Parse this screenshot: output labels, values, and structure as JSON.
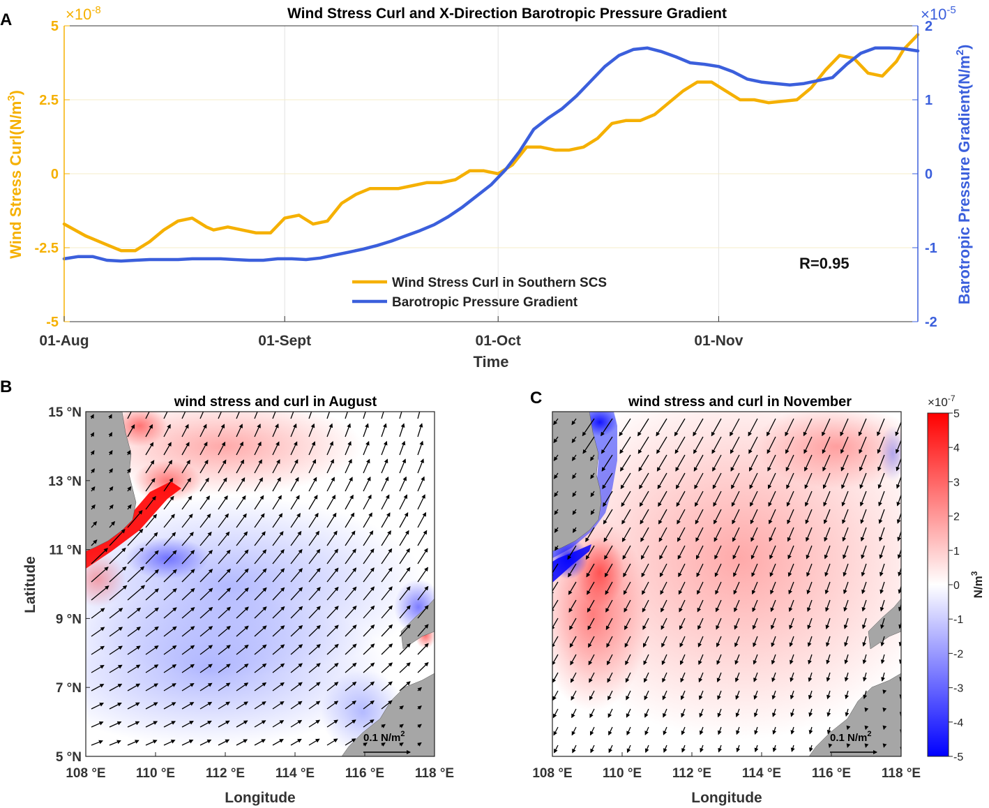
{
  "panelA": {
    "label": "A",
    "chart_data": {
      "type": "line",
      "title": "Wind Stress Curl and X-Direction Barotropic Pressure Gradient",
      "xlabel": "Time",
      "x_ticks": [
        "01-Aug",
        "01-Sept",
        "01-Oct",
        "01-Nov"
      ],
      "x_tick_days": [
        0,
        31,
        61,
        92
      ],
      "xlim": [
        0,
        120
      ],
      "left_axis": {
        "label": "Wind Stress Curl(N/m3)",
        "label_main": "Wind Stress Curl(N/m",
        "label_sup": "3",
        "label_end": ")",
        "multiplier": "×10",
        "exponent": "-8",
        "ylim": [
          -5,
          5
        ],
        "ticks": [
          -5,
          -2.5,
          0,
          2.5,
          5
        ],
        "tick_labels": [
          "-5",
          "-2.5",
          "0",
          "2.5",
          "5"
        ],
        "color": "#f5b000"
      },
      "right_axis": {
        "label": "Barotropic Pressure Gradient(N/m2)",
        "label_main": "Barotropic Pressure Gradient(N/m",
        "label_sup": "2",
        "label_end": ")",
        "multiplier": "×10",
        "exponent": "-5",
        "ylim": [
          -2,
          2
        ],
        "ticks": [
          -2,
          -1,
          0,
          1,
          2
        ],
        "tick_labels": [
          "-2",
          "-1",
          "0",
          "1",
          "2"
        ],
        "color": "#3b5fdc"
      },
      "annotation": "R=0.95",
      "series": [
        {
          "name": "Wind Stress Curl in Southern SCS",
          "axis": "left",
          "color": "#f5b000",
          "x": [
            0,
            3,
            6,
            8,
            10,
            12,
            14,
            16,
            18,
            20,
            21,
            23,
            25,
            27,
            29,
            31,
            33,
            35,
            37,
            39,
            41,
            43,
            45,
            47,
            49,
            51,
            53,
            55,
            57,
            59,
            61,
            63,
            65,
            67,
            69,
            71,
            73,
            75,
            77,
            79,
            81,
            83,
            85,
            87,
            89,
            91,
            93,
            95,
            97,
            99,
            101,
            103,
            105,
            107,
            109,
            111,
            113,
            115,
            117,
            118,
            120
          ],
          "values": [
            -1.7,
            -2.1,
            -2.4,
            -2.6,
            -2.6,
            -2.3,
            -1.9,
            -1.6,
            -1.5,
            -1.8,
            -1.9,
            -1.8,
            -1.9,
            -2.0,
            -2.0,
            -1.5,
            -1.4,
            -1.7,
            -1.6,
            -1.0,
            -0.7,
            -0.5,
            -0.5,
            -0.5,
            -0.4,
            -0.3,
            -0.3,
            -0.2,
            0.1,
            0.1,
            0.0,
            0.3,
            0.9,
            0.9,
            0.8,
            0.8,
            0.9,
            1.2,
            1.7,
            1.8,
            1.8,
            2.0,
            2.4,
            2.8,
            3.1,
            3.1,
            2.8,
            2.5,
            2.5,
            2.4,
            2.45,
            2.5,
            2.9,
            3.5,
            4.0,
            3.9,
            3.4,
            3.3,
            3.8,
            4.2,
            4.7
          ]
        },
        {
          "name": "Barotropic Pressure Gradient",
          "axis": "right",
          "color": "#3b5fdc",
          "x": [
            0,
            2,
            4,
            6,
            8,
            10,
            12,
            14,
            16,
            18,
            20,
            22,
            24,
            26,
            28,
            30,
            32,
            34,
            36,
            38,
            40,
            42,
            44,
            46,
            48,
            50,
            52,
            54,
            56,
            58,
            60,
            62,
            64,
            66,
            68,
            70,
            72,
            74,
            76,
            78,
            80,
            82,
            84,
            86,
            88,
            90,
            92,
            94,
            96,
            98,
            100,
            102,
            104,
            106,
            108,
            110,
            112,
            114,
            116,
            118,
            120
          ],
          "values": [
            -1.15,
            -1.12,
            -1.12,
            -1.17,
            -1.18,
            -1.17,
            -1.16,
            -1.16,
            -1.16,
            -1.15,
            -1.15,
            -1.15,
            -1.16,
            -1.17,
            -1.17,
            -1.15,
            -1.15,
            -1.16,
            -1.14,
            -1.1,
            -1.06,
            -1.02,
            -0.97,
            -0.91,
            -0.84,
            -0.77,
            -0.69,
            -0.58,
            -0.45,
            -0.3,
            -0.15,
            0.05,
            0.3,
            0.6,
            0.75,
            0.88,
            1.05,
            1.25,
            1.45,
            1.6,
            1.68,
            1.7,
            1.65,
            1.58,
            1.5,
            1.48,
            1.45,
            1.38,
            1.28,
            1.24,
            1.22,
            1.2,
            1.22,
            1.26,
            1.3,
            1.48,
            1.63,
            1.7,
            1.7,
            1.69,
            1.66
          ]
        }
      ]
    }
  },
  "panelB": {
    "label": "B",
    "title": "wind stress and curl in August",
    "xlabel": "Longitude",
    "ylabel": "Latitude",
    "x_tick_labels": [
      "108 °E",
      "110 °E",
      "112 °E",
      "114 °E",
      "116 °E",
      "118 °E"
    ],
    "y_tick_labels": [
      "5 °N",
      "7 °N",
      "9 °N",
      "11 °N",
      "13 °N",
      "15 °N"
    ],
    "ref_vector_label": "0.1 N/m",
    "ref_vector_sup": "2"
  },
  "panelC": {
    "label": "C",
    "title": "wind stress and curl in November",
    "xlabel": "Longitude",
    "x_tick_labels": [
      "108 °E",
      "110 °E",
      "112 °E",
      "114 °E",
      "116 °E",
      "118 °E"
    ],
    "ref_vector_label": "0.1 N/m",
    "ref_vector_sup": "2"
  },
  "colorbar": {
    "multiplier": "×10",
    "exponent": "-7",
    "unit_main": "N/m",
    "unit_sup": "3",
    "range": [
      -5,
      5
    ],
    "tick_labels": [
      "5",
      "4",
      "3",
      "2",
      "1",
      "0",
      "-1",
      "-2",
      "-3",
      "-4",
      "-5"
    ],
    "colors": [
      "#0000ff",
      "#ffffff",
      "#ff0000"
    ]
  },
  "colors": {
    "land": "#a6a6a6",
    "arrow": "#000000",
    "axes": "#222222"
  }
}
